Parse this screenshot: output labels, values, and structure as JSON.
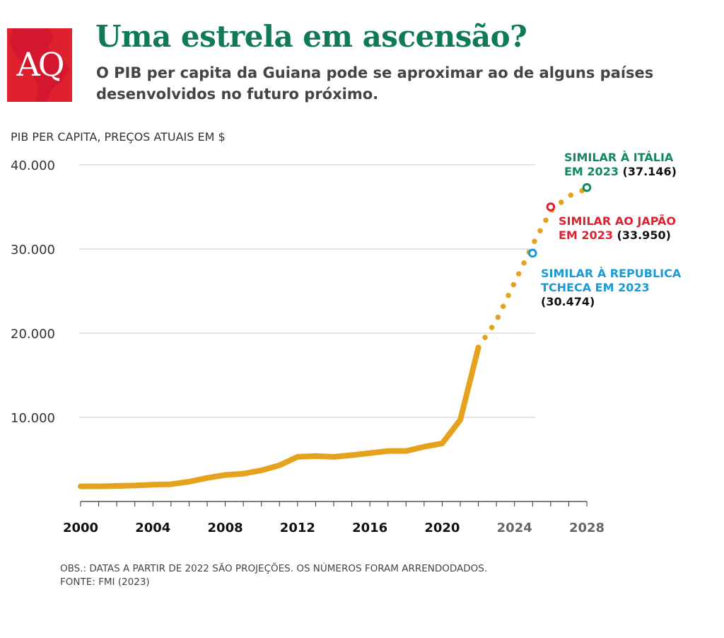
{
  "logo": {
    "text": "AQ",
    "color": "#e0202f"
  },
  "header": {
    "title": "Uma estrela em ascensão?",
    "subtitle": "O PIB per capita da Guiana pode se aproximar ao de alguns países desenvolvidos no futuro próximo."
  },
  "footnote": {
    "note": "OBS.: DATAS A PARTIR DE 2022 SÃO PROJEÇÕES. OS NÚMEROS FORAM ARRENDODADOS.",
    "source": "FONTE: FMI (2023)"
  },
  "colors": {
    "title": "#0f7a57",
    "series": "#e5a21f",
    "italy": "#0f8a5f",
    "japan": "#e0202f",
    "czech": "#1a9ad6",
    "actual_tick": "#111111",
    "projection_tick": "#666666"
  },
  "chart_data": {
    "type": "line",
    "ylabel": "PIB PER CAPITA, PREÇOS ATUAIS EM $",
    "ylim": [
      0,
      40000
    ],
    "xlim": [
      2000,
      2028
    ],
    "y_ticks": [
      {
        "value": 10000,
        "label": "10.000"
      },
      {
        "value": 20000,
        "label": "20.000"
      },
      {
        "value": 30000,
        "label": "30.000"
      },
      {
        "value": 40000,
        "label": "40.000"
      }
    ],
    "x_ticks": [
      {
        "value": 2000,
        "label": "2000",
        "projected": false
      },
      {
        "value": 2004,
        "label": "2004",
        "projected": false
      },
      {
        "value": 2008,
        "label": "2008",
        "projected": false
      },
      {
        "value": 2012,
        "label": "2012",
        "projected": false
      },
      {
        "value": 2016,
        "label": "2016",
        "projected": false
      },
      {
        "value": 2020,
        "label": "2020",
        "projected": false
      },
      {
        "value": 2024,
        "label": "2024",
        "projected": true
      },
      {
        "value": 2028,
        "label": "2028",
        "projected": true
      }
    ],
    "grid": true,
    "series": [
      {
        "style": "solid",
        "points": [
          [
            2000,
            1800
          ],
          [
            2001,
            1800
          ],
          [
            2002,
            1850
          ],
          [
            2003,
            1900
          ],
          [
            2004,
            2000
          ],
          [
            2005,
            2050
          ],
          [
            2006,
            2350
          ],
          [
            2007,
            2800
          ],
          [
            2008,
            3150
          ],
          [
            2009,
            3300
          ],
          [
            2010,
            3700
          ],
          [
            2011,
            4300
          ],
          [
            2012,
            5300
          ],
          [
            2013,
            5400
          ],
          [
            2014,
            5300
          ],
          [
            2015,
            5500
          ],
          [
            2016,
            5750
          ],
          [
            2017,
            6000
          ],
          [
            2018,
            6000
          ],
          [
            2019,
            6500
          ],
          [
            2020,
            6900
          ],
          [
            2021,
            9700
          ],
          [
            2022,
            18300
          ]
        ]
      },
      {
        "style": "dotted",
        "points": [
          [
            2022,
            18300
          ],
          [
            2023,
            21500
          ],
          [
            2024,
            26000
          ],
          [
            2025,
            30500
          ],
          [
            2026,
            34500
          ],
          [
            2027,
            36300
          ],
          [
            2028,
            37150
          ]
        ]
      }
    ],
    "markers": [
      {
        "x": 2025,
        "y": 29500,
        "color": "#1a9ad6"
      },
      {
        "x": 2026,
        "y": 35000,
        "color": "#e0202f"
      },
      {
        "x": 2028,
        "y": 37300,
        "color": "#0f8a5f"
      }
    ],
    "annotations": [
      {
        "lines": [
          [
            {
              "t": "SIMILAR À ITÁLIA",
              "c": "#0f8a5f"
            }
          ],
          [
            {
              "t": "EM 2023",
              "c": "#0f8a5f"
            },
            {
              "t": " (37.146)",
              "c": "#111111"
            }
          ]
        ]
      },
      {
        "lines": [
          [
            {
              "t": "SIMILAR AO JAPÃO",
              "c": "#e0202f"
            }
          ],
          [
            {
              "t": "EM 2023",
              "c": "#e0202f"
            },
            {
              "t": " (33.950)",
              "c": "#111111"
            }
          ]
        ]
      },
      {
        "lines": [
          [
            {
              "t": "SIMILAR À REPUBLICA",
              "c": "#1a9ad6"
            }
          ],
          [
            {
              "t": "TCHECA EM 2023",
              "c": "#1a9ad6"
            }
          ],
          [
            {
              "t": "(30.474)",
              "c": "#111111"
            }
          ]
        ]
      }
    ]
  }
}
